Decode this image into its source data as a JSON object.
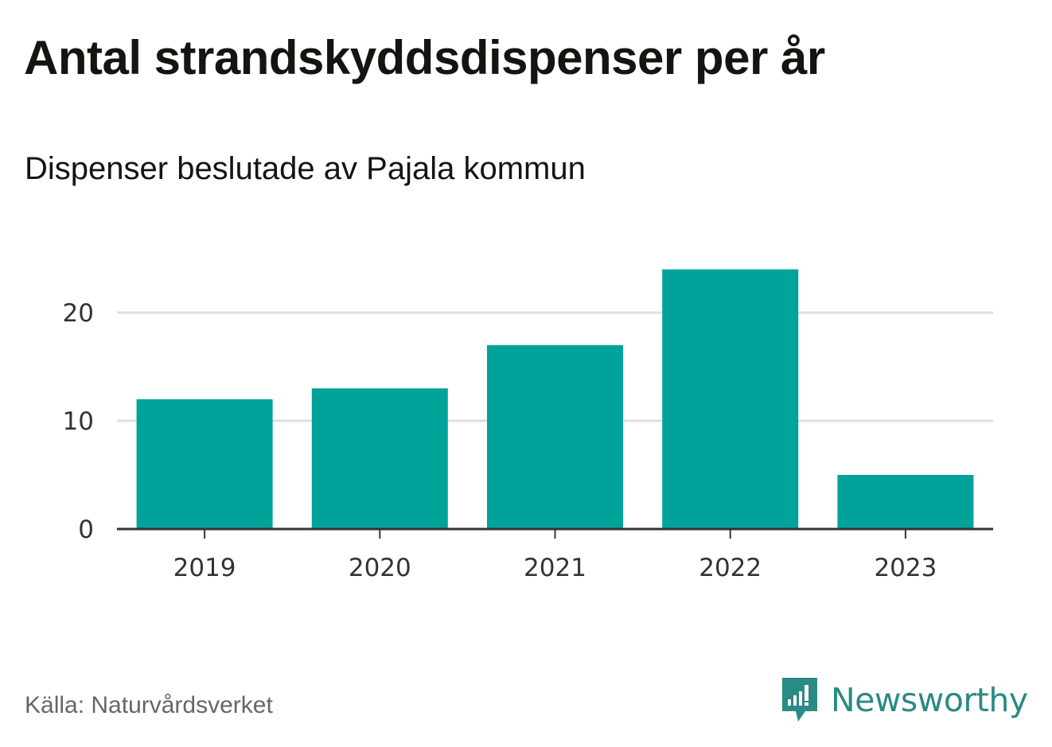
{
  "title": "Antal strandskyddsdispenser per år",
  "subtitle": "Dispenser beslutade av Pajala kommun",
  "source": "Källa: Naturvårdsverket",
  "brand": {
    "name": "Newsworthy",
    "logo_icon": "newsworthy-logo-icon",
    "color": "#2a8a84"
  },
  "colors": {
    "bar": "#00a39a",
    "grid": "#dedede",
    "axis": "#333333"
  },
  "chart_data": {
    "type": "bar",
    "title": "Antal strandskyddsdispenser per år",
    "subtitle": "Dispenser beslutade av Pajala kommun",
    "xlabel": "",
    "ylabel": "",
    "categories": [
      "2019",
      "2020",
      "2021",
      "2022",
      "2023"
    ],
    "values": [
      12,
      13,
      17,
      24,
      5
    ],
    "ylim": [
      0,
      24
    ],
    "yticks": [
      0,
      10,
      20
    ],
    "grid": true,
    "legend": "none"
  }
}
